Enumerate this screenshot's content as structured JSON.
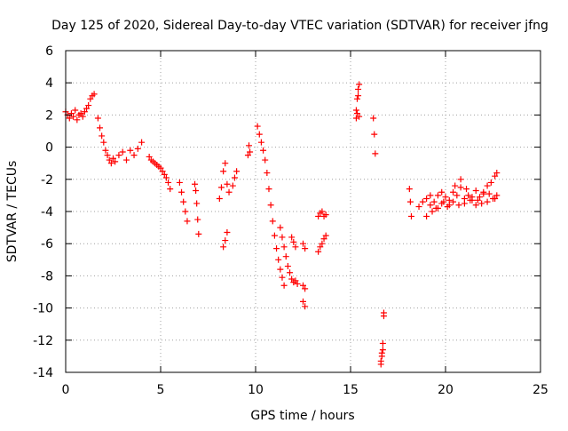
{
  "chart_data": {
    "type": "scatter",
    "title": "Day 125 of 2020, Sidereal Day-to-day VTEC variation (SDTVAR) for receiver jfng",
    "xlabel": "GPS time / hours",
    "ylabel": "SDTVAR / TECUs",
    "xlim": [
      0,
      25
    ],
    "ylim": [
      -14,
      6
    ],
    "xticks": [
      0,
      5,
      10,
      15,
      20,
      25
    ],
    "yticks": [
      -14,
      -12,
      -10,
      -8,
      -6,
      -4,
      -2,
      0,
      2,
      4,
      6
    ],
    "xtick_labels": [
      "0",
      "5",
      "10",
      "15",
      "20",
      "25"
    ],
    "ytick_labels": [
      "-14",
      "-12",
      "-10",
      "-8",
      "-6",
      "-4",
      "-2",
      "0",
      "2",
      "4",
      "6"
    ],
    "grid": true,
    "marker": "+",
    "color": "#ff0000",
    "series": [
      {
        "name": "SDTVAR",
        "x": [
          0.0,
          0.1,
          0.2,
          0.3,
          0.4,
          0.5,
          0.6,
          0.7,
          0.8,
          0.9,
          1.0,
          1.1,
          1.2,
          1.3,
          1.4,
          1.5,
          1.7,
          1.8,
          1.9,
          2.0,
          2.1,
          2.2,
          2.3,
          2.4,
          2.5,
          2.6,
          2.8,
          3.0,
          3.2,
          3.4,
          3.6,
          3.8,
          4.0,
          4.4,
          4.5,
          4.6,
          4.7,
          4.8,
          4.9,
          5.0,
          5.1,
          5.2,
          5.3,
          5.4,
          5.5,
          6.0,
          6.1,
          6.2,
          6.3,
          6.4,
          6.8,
          6.85,
          6.9,
          6.95,
          7.0,
          8.1,
          8.2,
          8.3,
          8.4,
          8.5,
          8.6,
          8.3,
          8.4,
          8.5,
          8.8,
          8.9,
          9.0,
          9.6,
          9.65,
          9.7,
          10.1,
          10.2,
          10.3,
          10.4,
          10.5,
          10.6,
          10.7,
          10.8,
          10.9,
          11.0,
          11.1,
          11.2,
          11.3,
          11.4,
          11.5,
          11.3,
          11.4,
          11.5,
          11.6,
          11.7,
          11.8,
          11.9,
          12.0,
          12.1,
          12.2,
          11.9,
          12.0,
          12.1,
          12.5,
          12.6,
          12.5,
          12.6,
          12.5,
          12.6,
          13.3,
          13.4,
          13.5,
          13.6,
          13.7,
          13.3,
          13.4,
          13.5,
          13.6,
          13.7,
          15.3,
          15.35,
          15.4,
          15.45,
          15.3,
          15.35,
          15.4,
          15.45,
          16.2,
          16.25,
          16.3,
          16.6,
          16.65,
          16.7,
          16.75,
          16.6,
          16.65,
          16.7,
          16.75,
          18.1,
          18.15,
          18.2,
          18.6,
          18.8,
          19.0,
          19.2,
          19.4,
          19.6,
          19.8,
          20.0,
          20.2,
          20.4,
          20.6,
          20.8,
          21.0,
          21.2,
          21.4,
          21.6,
          21.8,
          22.0,
          22.2,
          22.4,
          22.6,
          22.7,
          19.2,
          19.5,
          19.8,
          20.1,
          20.4,
          20.7,
          21.0,
          21.3,
          21.6,
          21.9,
          22.2,
          22.5,
          22.7,
          19.0,
          19.3,
          19.6,
          19.9,
          20.2,
          20.5,
          20.8,
          21.1,
          21.4,
          21.7,
          22.0,
          22.3,
          22.6
        ],
        "y": [
          2.2,
          2.0,
          1.8,
          2.1,
          1.9,
          2.3,
          1.7,
          2.0,
          2.1,
          1.9,
          2.2,
          2.4,
          2.6,
          3.0,
          3.2,
          3.3,
          1.8,
          1.2,
          0.7,
          0.3,
          -0.2,
          -0.5,
          -0.8,
          -1.0,
          -0.7,
          -0.9,
          -0.5,
          -0.3,
          -0.8,
          -0.2,
          -0.5,
          -0.1,
          0.3,
          -0.6,
          -0.8,
          -0.9,
          -1.0,
          -1.1,
          -1.2,
          -1.3,
          -1.5,
          -1.7,
          -1.9,
          -2.2,
          -2.6,
          -2.2,
          -2.8,
          -3.4,
          -4.0,
          -4.6,
          -2.3,
          -2.7,
          -3.5,
          -4.5,
          -5.4,
          -3.2,
          -2.5,
          -1.5,
          -1.0,
          -2.3,
          -2.8,
          -6.2,
          -5.8,
          -5.3,
          -2.4,
          -1.9,
          -1.5,
          -0.5,
          0.1,
          -0.3,
          1.3,
          0.8,
          0.3,
          -0.2,
          -0.8,
          -1.6,
          -2.6,
          -3.6,
          -4.6,
          -5.5,
          -6.3,
          -7.0,
          -7.6,
          -8.1,
          -8.6,
          -5.0,
          -5.6,
          -6.2,
          -6.8,
          -7.4,
          -7.8,
          -8.2,
          -8.4,
          -8.3,
          -8.5,
          -5.6,
          -5.9,
          -6.2,
          -9.6,
          -9.9,
          -8.6,
          -8.8,
          -6.0,
          -6.3,
          -4.3,
          -4.1,
          -4.0,
          -4.3,
          -4.2,
          -6.5,
          -6.2,
          -6.0,
          -5.7,
          -5.5,
          2.3,
          3.0,
          3.6,
          3.9,
          1.8,
          2.1,
          3.2,
          1.9,
          1.8,
          0.8,
          -0.4,
          -13.3,
          -12.8,
          -12.2,
          -10.5,
          -13.5,
          -13.0,
          -12.6,
          -10.3,
          -2.6,
          -3.4,
          -4.3,
          -3.7,
          -3.4,
          -3.2,
          -3.0,
          -3.4,
          -3.0,
          -2.8,
          -3.1,
          -3.3,
          -2.8,
          -3.0,
          -2.5,
          -3.2,
          -3.0,
          -3.3,
          -2.7,
          -3.1,
          -2.9,
          -2.4,
          -2.2,
          -1.8,
          -1.6,
          -3.6,
          -3.8,
          -3.5,
          -3.7,
          -3.4,
          -3.6,
          -3.5,
          -3.3,
          -3.6,
          -3.5,
          -3.4,
          -3.2,
          -3.0,
          -4.3,
          -4.0,
          -3.8,
          -3.4,
          -3.6,
          -2.4,
          -2.0,
          -2.6,
          -3.1,
          -3.3,
          -2.8,
          -2.9,
          -3.2
        ]
      }
    ]
  }
}
